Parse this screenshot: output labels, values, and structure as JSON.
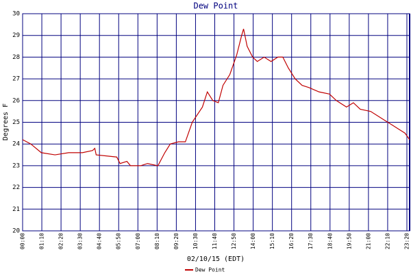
{
  "chart_data": {
    "type": "line",
    "title": "Dew Point",
    "x_label": "02/10/15 (EDT)",
    "y_label": "Degrees F",
    "x": [
      0,
      30,
      68,
      118,
      168,
      218,
      255,
      263,
      268,
      343,
      355,
      380,
      393,
      430,
      455,
      493,
      518,
      538,
      568,
      593,
      618,
      655,
      673,
      693,
      713,
      730,
      755,
      780,
      798,
      805,
      818,
      838,
      855,
      880,
      905,
      930,
      948,
      968,
      993,
      1018,
      1043,
      1080,
      1118,
      1143,
      1180,
      1205,
      1230,
      1268,
      1293,
      1318,
      1343,
      1368,
      1393,
      1410
    ],
    "series": [
      {
        "name": "Dew Point",
        "color": "#c00000",
        "values": [
          24.2,
          24.0,
          23.6,
          23.5,
          23.6,
          23.6,
          23.7,
          23.8,
          23.5,
          23.4,
          23.1,
          23.2,
          23.0,
          23.0,
          23.1,
          23.0,
          23.6,
          24.0,
          24.1,
          24.1,
          25.0,
          25.7,
          26.4,
          26.0,
          25.9,
          26.7,
          27.2,
          28.1,
          29.0,
          29.3,
          28.5,
          28.0,
          27.8,
          28.0,
          27.8,
          28.0,
          28.0,
          27.5,
          27.0,
          26.7,
          26.6,
          26.4,
          26.3,
          26.0,
          25.7,
          25.9,
          25.6,
          25.5,
          25.3,
          25.1,
          24.9,
          24.7,
          24.5,
          24.2
        ]
      }
    ],
    "xlim": [
      0,
      1410
    ],
    "xticks": [
      {
        "value": 0,
        "label": "00:00"
      },
      {
        "value": 70,
        "label": "01:10"
      },
      {
        "value": 140,
        "label": "02:20"
      },
      {
        "value": 210,
        "label": "03:30"
      },
      {
        "value": 280,
        "label": "04:40"
      },
      {
        "value": 350,
        "label": "05:50"
      },
      {
        "value": 420,
        "label": "07:00"
      },
      {
        "value": 490,
        "label": "08:10"
      },
      {
        "value": 560,
        "label": "09:20"
      },
      {
        "value": 630,
        "label": "10:30"
      },
      {
        "value": 700,
        "label": "11:40"
      },
      {
        "value": 770,
        "label": "12:50"
      },
      {
        "value": 840,
        "label": "14:00"
      },
      {
        "value": 910,
        "label": "15:10"
      },
      {
        "value": 980,
        "label": "16:20"
      },
      {
        "value": 1050,
        "label": "17:30"
      },
      {
        "value": 1120,
        "label": "18:40"
      },
      {
        "value": 1190,
        "label": "19:50"
      },
      {
        "value": 1260,
        "label": "21:00"
      },
      {
        "value": 1330,
        "label": "22:10"
      },
      {
        "value": 1400,
        "label": "23:20"
      }
    ],
    "ylim": [
      20,
      30
    ],
    "yticks": [
      20,
      21,
      22,
      23,
      24,
      25,
      26,
      27,
      28,
      29,
      30
    ],
    "grid": true
  }
}
